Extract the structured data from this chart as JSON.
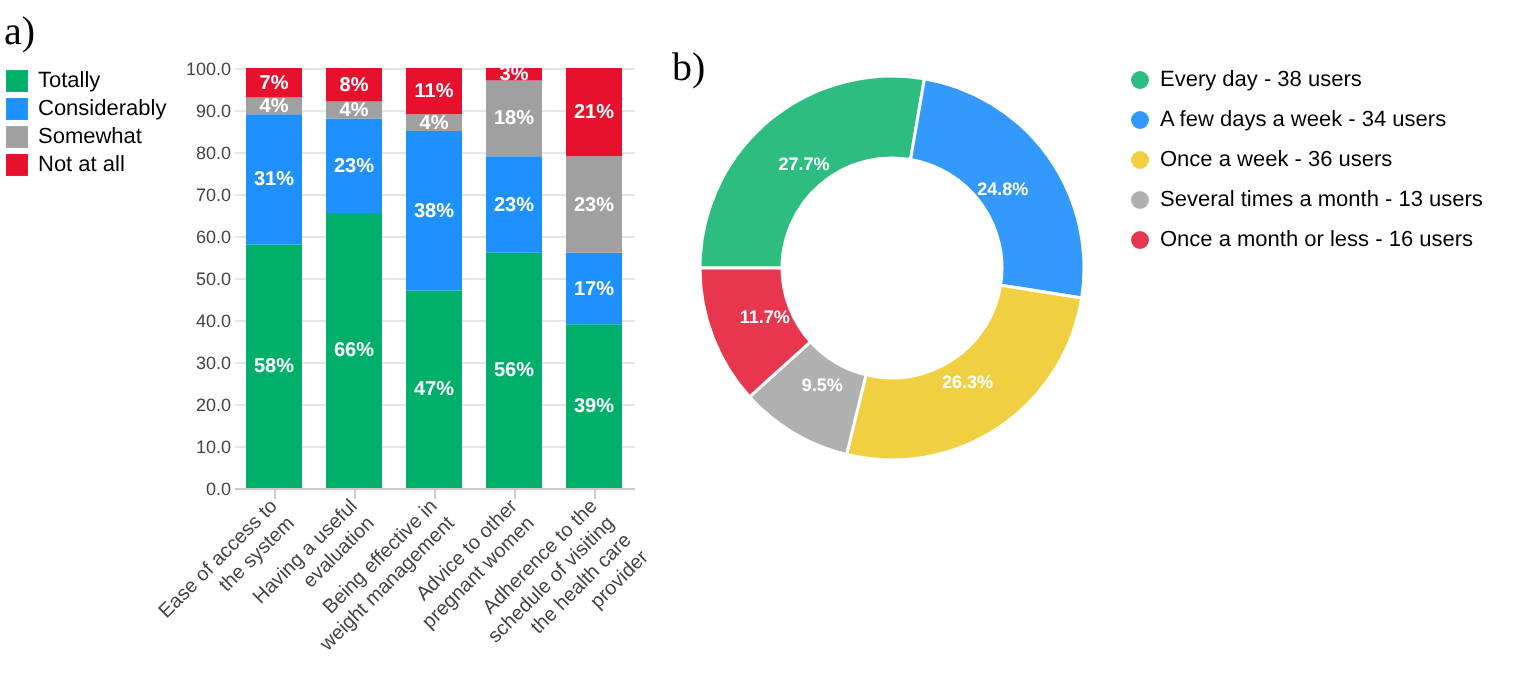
{
  "chart_data": [
    {
      "type": "bar",
      "title": "a)",
      "stacked": true,
      "categories": [
        "Ease of access to the system",
        "Having a useful evaluation",
        "Being effective in weight management",
        "Advice to other pregnant women",
        "Adherence to the schedule of visiting the health care provider"
      ],
      "series": [
        {
          "name": "Totally",
          "color": "#00b06a",
          "values": [
            58,
            65.5,
            47,
            56,
            39
          ],
          "value_labels": [
            "58%",
            "66%",
            "47%",
            "56%",
            "39%"
          ]
        },
        {
          "name": "Considerably",
          "color": "#1e90ff",
          "values": [
            31,
            22.5,
            38,
            23,
            17
          ],
          "value_labels": [
            "31%",
            "23%",
            "38%",
            "23%",
            "17%"
          ]
        },
        {
          "name": "Somewhat",
          "color": "#a0a0a0",
          "values": [
            4,
            4,
            4,
            18,
            23
          ],
          "value_labels": [
            "4%",
            "4%",
            "4%",
            "18%",
            "23%"
          ]
        },
        {
          "name": "Not at all",
          "color": "#e8112d",
          "values": [
            7,
            8,
            11,
            3,
            21
          ],
          "value_labels": [
            "7%",
            "8%",
            "11%",
            "3%",
            "21%"
          ]
        }
      ],
      "ylim": [
        0,
        100
      ],
      "yticks": [
        {
          "value": 0,
          "label": "0.0"
        },
        {
          "value": 10,
          "label": "10.0"
        },
        {
          "value": 20,
          "label": "20.0"
        },
        {
          "value": 30,
          "label": "30.0"
        },
        {
          "value": 40,
          "label": "40.0"
        },
        {
          "value": 50,
          "label": "50.0"
        },
        {
          "value": 60,
          "label": "60.0"
        },
        {
          "value": 70,
          "label": "70.0"
        },
        {
          "value": 80,
          "label": "80.0"
        },
        {
          "value": 90,
          "label": "90.0"
        },
        {
          "value": 100,
          "label": "100.0"
        }
      ],
      "grid": "y",
      "legend": "left"
    },
    {
      "type": "donut",
      "title": "b)",
      "categories": [
        "Every day - 38 users",
        "A few days a week - 34 users",
        "Once a week - 36 users",
        "Several times a month - 13 users",
        "Once a month or less - 16 users"
      ],
      "values": [
        27.7,
        24.8,
        26.3,
        9.5,
        11.7
      ],
      "colors": [
        "#2ebd80",
        "#3399ff",
        "#f0d040",
        "#b0b0b0",
        "#e8364f"
      ],
      "value_labels": [
        "27.7%",
        "24.8%",
        "26.3%",
        "9.5%",
        "11.7%"
      ],
      "legend": "right"
    }
  ]
}
